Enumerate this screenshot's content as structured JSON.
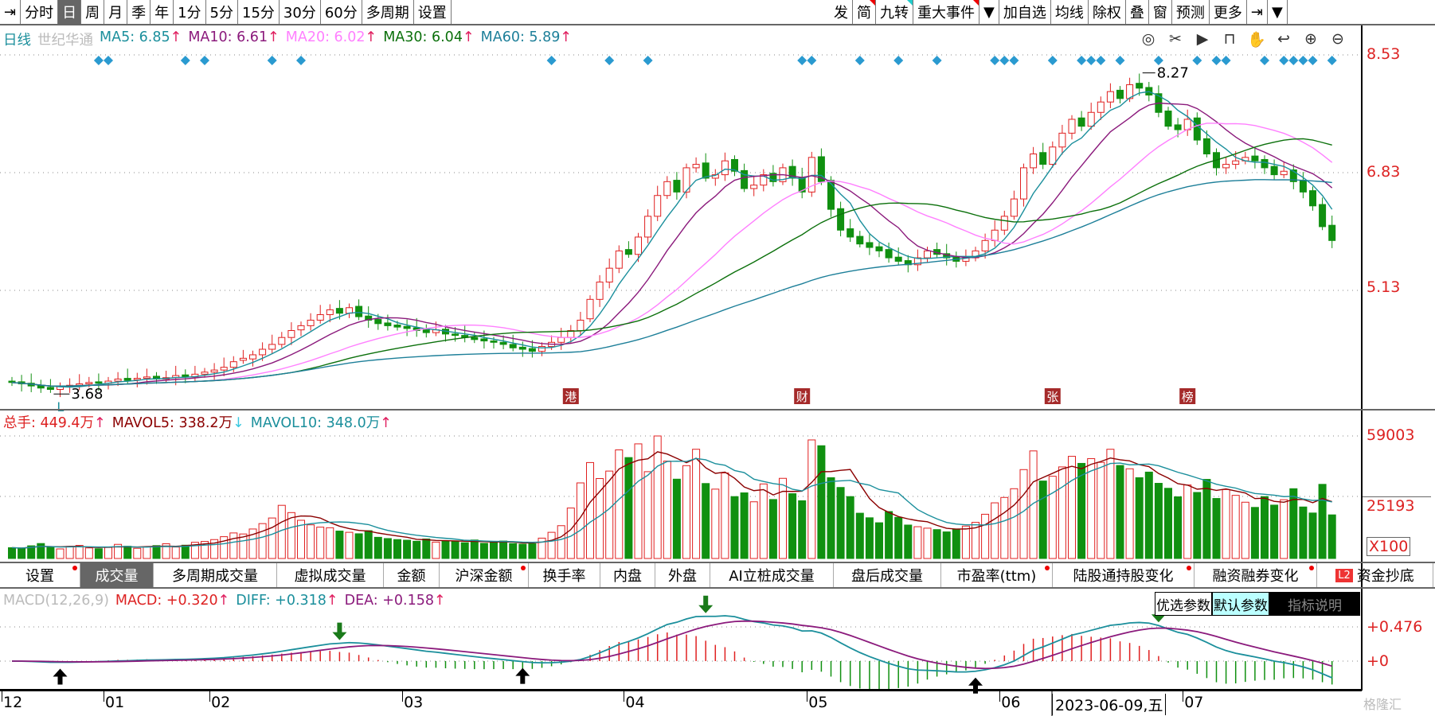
{
  "toolbar_left": [
    {
      "label": "⇥",
      "name": "collapse"
    },
    {
      "label": "分时"
    },
    {
      "label": "日",
      "active": true
    },
    {
      "label": "周"
    },
    {
      "label": "月"
    },
    {
      "label": "季"
    },
    {
      "label": "年"
    },
    {
      "label": "1分"
    },
    {
      "label": "5分"
    },
    {
      "label": "15分"
    },
    {
      "label": "30分"
    },
    {
      "label": "60分"
    },
    {
      "label": "多周期"
    },
    {
      "label": "设置"
    }
  ],
  "toolbar_right": [
    {
      "label": "发"
    },
    {
      "label": "简",
      "dot": "red"
    },
    {
      "label": "九转",
      "dot": "cyan"
    },
    {
      "label": "重大事件",
      "dot": "red"
    },
    {
      "label": "▼"
    },
    {
      "label": "加自选"
    },
    {
      "label": "均线"
    },
    {
      "label": "除权"
    },
    {
      "label": "叠"
    },
    {
      "label": "窗"
    },
    {
      "label": "预测"
    },
    {
      "label": "更多"
    },
    {
      "label": "⇥"
    },
    {
      "label": "▼"
    }
  ],
  "chart_icons": [
    {
      "name": "eye-icon",
      "glyph": "◎"
    },
    {
      "name": "scissors-icon",
      "glyph": "✂"
    },
    {
      "name": "play-icon",
      "glyph": "▶"
    },
    {
      "name": "lock-icon",
      "glyph": "⊓"
    },
    {
      "name": "hand-icon",
      "glyph": "✋"
    },
    {
      "name": "undo-icon",
      "glyph": "↩"
    },
    {
      "name": "zoom-in-icon",
      "glyph": "⊕"
    },
    {
      "name": "zoom-out-icon",
      "glyph": "⊖"
    }
  ],
  "price_header": {
    "period": "日线",
    "stock": "世纪华通",
    "ma5": "MA5: 6.85",
    "ma10": "MA10: 6.61",
    "ma20": "MA20: 6.02",
    "ma30": "MA30: 6.04",
    "ma60": "MA60: 5.89",
    "arrow": "↑"
  },
  "volume_header": {
    "total": "总手: 449.4万",
    "mavol5": "MAVOL5: 338.2万",
    "mavol10": "MAVOL10: 348.0万",
    "up": "↑",
    "down": "↓"
  },
  "macd_header": {
    "name": "MACD(12,26,9)",
    "macd": "MACD: +0.320",
    "diff": "DIFF: +0.318",
    "dea": "DEA: +0.158",
    "arrow": "↑"
  },
  "macd_buttons": [
    "优选参数",
    "默认参数",
    "指标说明"
  ],
  "tabs": [
    {
      "label": "设置",
      "dot": true
    },
    {
      "label": "成交量",
      "active": true
    },
    {
      "label": "多周期成交量"
    },
    {
      "label": "虚拟成交量"
    },
    {
      "label": "金额"
    },
    {
      "label": "沪深金额",
      "dot": true
    },
    {
      "label": "换手率"
    },
    {
      "label": "内盘"
    },
    {
      "label": "外盘"
    },
    {
      "label": "AI立桩成交量"
    },
    {
      "label": "盘后成交量"
    },
    {
      "label": "市盈率(ttm)",
      "dot": true
    },
    {
      "label": "陆股通持股变化",
      "dot": true
    },
    {
      "label": "融资融券变化",
      "dot": true
    },
    {
      "label": "资金抄底",
      "badge": "L2"
    }
  ],
  "price_axis": [
    "8.53",
    "6.83",
    "5.13"
  ],
  "volume_axis": [
    "59003",
    "25193",
    "X100"
  ],
  "macd_axis": [
    "+0.476",
    "+0"
  ],
  "max_label": "8.27",
  "min_label": "3.68",
  "min_marker": "L",
  "x_labels": [
    {
      "label": "12",
      "index": 0
    },
    {
      "label": "01",
      "index": 10
    },
    {
      "label": "02",
      "index": 21
    },
    {
      "label": "03",
      "index": 41
    },
    {
      "label": "04",
      "index": 64
    },
    {
      "label": "05",
      "index": 83
    },
    {
      "label": "06",
      "index": 103
    },
    {
      "label": "07",
      "index": 122
    }
  ],
  "cursor_date": "2023-06-09,五",
  "watermark": "格隆汇",
  "colors": {
    "up": "#e02020",
    "down": "#109010",
    "ma5": "#1b8f9c",
    "ma10": "#8b1a7c",
    "ma20": "#ff80ff",
    "ma30": "#0b700b",
    "ma60": "#1d7f99",
    "diff": "#1b8f9c",
    "dea": "#8b1a7c",
    "diamond": "#2a9ad0"
  },
  "chart_data": {
    "type": "candlestick",
    "close": [
      3.8,
      3.78,
      3.75,
      3.72,
      3.7,
      3.74,
      3.76,
      3.78,
      3.8,
      3.79,
      3.82,
      3.85,
      3.83,
      3.86,
      3.88,
      3.85,
      3.87,
      3.9,
      3.88,
      3.92,
      3.95,
      3.98,
      4.02,
      4.1,
      4.15,
      4.2,
      4.28,
      4.35,
      4.45,
      4.55,
      4.62,
      4.7,
      4.78,
      4.85,
      4.8,
      4.88,
      4.75,
      4.7,
      4.65,
      4.62,
      4.6,
      4.58,
      4.55,
      4.52,
      4.56,
      4.5,
      4.48,
      4.45,
      4.42,
      4.4,
      4.38,
      4.35,
      4.3,
      4.28,
      4.25,
      4.32,
      4.38,
      4.45,
      4.55,
      4.7,
      5.0,
      5.25,
      5.45,
      5.7,
      5.65,
      5.9,
      6.2,
      6.5,
      6.7,
      6.55,
      6.9,
      6.95,
      6.75,
      6.8,
      7.0,
      6.85,
      6.6,
      6.65,
      6.8,
      6.7,
      6.9,
      6.75,
      6.55,
      7.05,
      6.7,
      6.3,
      6.0,
      5.9,
      5.8,
      5.75,
      5.7,
      5.6,
      5.55,
      5.5,
      5.6,
      5.7,
      5.65,
      5.6,
      5.55,
      5.6,
      5.7,
      5.85,
      6.0,
      6.2,
      6.45,
      6.9,
      7.1,
      6.95,
      7.2,
      7.4,
      7.6,
      7.5,
      7.7,
      7.85,
      8.0,
      7.9,
      8.1,
      8.05,
      7.95,
      7.7,
      7.5,
      7.45,
      7.6,
      7.3,
      7.1,
      6.9,
      6.95,
      7.0,
      7.05,
      7.0,
      6.9,
      6.8,
      6.85,
      6.7,
      6.55,
      6.35,
      6.05,
      5.85
    ],
    "open": [
      3.82,
      3.81,
      3.79,
      3.76,
      3.73,
      3.7,
      3.74,
      3.76,
      3.78,
      3.81,
      3.79,
      3.82,
      3.86,
      3.84,
      3.86,
      3.89,
      3.85,
      3.87,
      3.91,
      3.88,
      3.92,
      3.95,
      3.98,
      4.02,
      4.12,
      4.14,
      4.2,
      4.28,
      4.35,
      4.45,
      4.56,
      4.62,
      4.7,
      4.78,
      4.87,
      4.8,
      4.9,
      4.76,
      4.71,
      4.66,
      4.63,
      4.61,
      4.59,
      4.56,
      4.52,
      4.57,
      4.5,
      4.48,
      4.45,
      4.43,
      4.4,
      4.38,
      4.35,
      4.31,
      4.29,
      4.25,
      4.32,
      4.38,
      4.45,
      4.55,
      4.72,
      5.0,
      5.25,
      5.45,
      5.72,
      5.65,
      5.9,
      6.2,
      6.5,
      6.72,
      6.55,
      6.9,
      6.97,
      6.75,
      6.8,
      7.02,
      6.86,
      6.6,
      6.65,
      6.82,
      6.7,
      6.92,
      6.76,
      6.55,
      7.06,
      6.72,
      6.31,
      6.02,
      5.91,
      5.82,
      5.76,
      5.72,
      5.61,
      5.56,
      5.5,
      5.6,
      5.72,
      5.66,
      5.61,
      5.55,
      5.6,
      5.7,
      5.85,
      6.0,
      6.2,
      6.45,
      6.9,
      7.12,
      6.95,
      7.2,
      7.4,
      7.62,
      7.5,
      7.7,
      7.85,
      8.02,
      7.9,
      8.12,
      8.06,
      7.97,
      7.72,
      7.52,
      7.45,
      7.62,
      7.32,
      7.12,
      6.9,
      6.95,
      7.0,
      7.07,
      7.02,
      6.92,
      6.8,
      6.87,
      6.72,
      6.57,
      6.37,
      6.07
    ],
    "volume": [
      5200,
      4800,
      6100,
      7200,
      5400,
      4600,
      5800,
      6300,
      5100,
      4700,
      5300,
      6800,
      5900,
      4900,
      5600,
      6200,
      7100,
      5500,
      6400,
      7800,
      8200,
      9100,
      10500,
      12300,
      11800,
      14200,
      16800,
      19500,
      25600,
      22100,
      18400,
      16200,
      15100,
      14800,
      13200,
      12600,
      11900,
      13400,
      10200,
      9600,
      9100,
      8800,
      8300,
      9400,
      7900,
      8600,
      8100,
      7600,
      8900,
      7300,
      7800,
      8400,
      7200,
      6900,
      7100,
      9800,
      12600,
      15800,
      24300,
      36400,
      46200,
      38500,
      42100,
      52300,
      48600,
      55200,
      41800,
      59003,
      46900,
      38200,
      44700,
      52600,
      36100,
      33400,
      41200,
      29800,
      31600,
      27300,
      35900,
      28400,
      38600,
      31200,
      27800,
      57100,
      54300,
      38900,
      34200,
      29800,
      21800,
      19600,
      17200,
      22600,
      19800,
      16100,
      15300,
      14600,
      13900,
      12800,
      14200,
      15600,
      17400,
      21300,
      26800,
      29400,
      33600,
      42800,
      51800,
      37300,
      39600,
      44100,
      49200,
      45800,
      48100,
      46300,
      52600,
      44800,
      43200,
      38900,
      41600,
      36200,
      33800,
      29700,
      35400,
      31800,
      38100,
      28900,
      33200,
      30400,
      27100,
      24600,
      29800,
      25700,
      28300,
      33600,
      24800,
      21900,
      35700,
      21000
    ],
    "diamonds": [
      9,
      10,
      18,
      20,
      27,
      30,
      56,
      62,
      66,
      82,
      83,
      88,
      92,
      96,
      102,
      103,
      104,
      108,
      111,
      112,
      113,
      115,
      119,
      123,
      125,
      126,
      130,
      132,
      133,
      134,
      135,
      137
    ],
    "events": [
      {
        "label": "港",
        "index": 58
      },
      {
        "label": "财",
        "index": 82
      },
      {
        "label": "张",
        "index": 108
      },
      {
        "label": "榜",
        "index": 122
      }
    ],
    "buy_signals": [
      5,
      53,
      100
    ],
    "sell_signals": [
      34,
      72,
      119
    ],
    "ylim": [
      3.55,
      8.53
    ],
    "volume_max": 59003
  }
}
